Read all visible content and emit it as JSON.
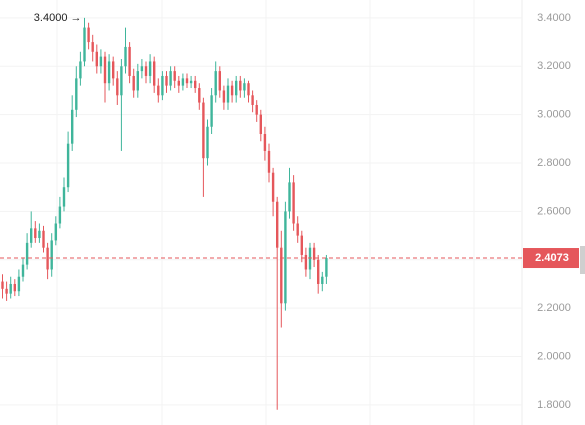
{
  "chart_data": {
    "type": "candlestick",
    "categories": [
      null,
      null,
      null,
      null,
      null,
      null,
      null,
      null,
      null,
      null,
      null,
      null,
      null,
      null,
      null,
      null,
      null,
      null,
      null,
      null,
      null,
      null,
      null,
      null,
      null,
      null,
      null,
      null,
      null,
      null,
      null,
      null,
      null,
      null,
      null,
      null,
      null,
      null,
      null,
      null,
      null,
      null,
      null,
      null,
      null,
      null,
      null,
      null,
      null,
      null,
      null,
      null,
      null,
      null,
      null,
      null,
      null,
      null,
      null,
      null,
      null,
      null,
      null,
      null,
      null,
      null,
      null,
      null,
      null,
      null,
      null,
      null,
      null,
      null,
      null,
      null,
      null,
      null,
      null,
      null
    ],
    "open": [
      2.31,
      2.28,
      2.26,
      2.3,
      2.27,
      2.33,
      2.38,
      2.47,
      2.53,
      2.49,
      2.52,
      2.45,
      2.36,
      2.48,
      2.55,
      2.62,
      2.7,
      2.88,
      3.02,
      3.15,
      3.22,
      3.36,
      3.3,
      3.26,
      3.2,
      3.24,
      3.13,
      3.22,
      3.15,
      3.08,
      3.2,
      3.28,
      3.16,
      3.1,
      3.18,
      3.2,
      3.16,
      3.22,
      3.12,
      3.08,
      3.16,
      3.12,
      3.18,
      3.14,
      3.12,
      3.15,
      3.13,
      3.14,
      3.11,
      3.05,
      2.82,
      2.95,
      3.08,
      3.18,
      3.1,
      3.05,
      3.12,
      3.08,
      3.14,
      3.1,
      3.13,
      3.08,
      3.04,
      3.0,
      2.92,
      2.85,
      2.76,
      2.64,
      2.45,
      2.22,
      2.6,
      2.72,
      2.55,
      2.5,
      2.42,
      2.36,
      2.45,
      2.4,
      2.3,
      2.33
    ],
    "high": [
      2.34,
      2.31,
      2.33,
      2.32,
      2.36,
      2.41,
      2.51,
      2.6,
      2.56,
      2.55,
      2.54,
      2.47,
      2.51,
      2.58,
      2.66,
      2.74,
      2.93,
      3.08,
      3.2,
      3.26,
      3.4,
      3.38,
      3.33,
      3.29,
      3.27,
      3.26,
      3.25,
      3.24,
      3.18,
      3.23,
      3.36,
      3.3,
      3.19,
      3.21,
      3.23,
      3.22,
      3.25,
      3.24,
      3.15,
      3.18,
      3.18,
      3.2,
      3.2,
      3.16,
      3.17,
      3.17,
      3.16,
      3.16,
      3.13,
      3.07,
      2.98,
      3.11,
      3.22,
      3.2,
      3.12,
      3.15,
      3.14,
      3.16,
      3.16,
      3.15,
      3.14,
      3.1,
      3.06,
      3.02,
      2.95,
      2.88,
      2.78,
      2.66,
      2.52,
      2.64,
      2.78,
      2.75,
      2.58,
      2.52,
      2.45,
      2.47,
      2.47,
      2.42,
      2.35,
      2.42
    ],
    "low": [
      2.24,
      2.23,
      2.24,
      2.25,
      2.25,
      2.31,
      2.36,
      2.45,
      2.47,
      2.47,
      2.43,
      2.32,
      2.33,
      2.46,
      2.53,
      2.6,
      2.68,
      2.85,
      2.99,
      3.12,
      3.2,
      3.27,
      3.22,
      3.17,
      3.17,
      3.05,
      3.1,
      3.12,
      3.04,
      2.85,
      3.17,
      3.13,
      3.07,
      3.07,
      3.15,
      3.13,
      3.13,
      3.09,
      3.05,
      3.06,
      3.09,
      3.1,
      3.11,
      3.09,
      3.1,
      3.11,
      3.11,
      3.09,
      3.02,
      2.66,
      2.79,
      2.92,
      3.05,
      3.07,
      3.02,
      3.02,
      3.05,
      3.05,
      3.07,
      3.07,
      3.05,
      3.01,
      2.97,
      2.89,
      2.81,
      2.72,
      2.58,
      1.78,
      2.12,
      2.19,
      2.57,
      2.52,
      2.47,
      2.39,
      2.33,
      2.32,
      2.37,
      2.26,
      2.27,
      2.3
    ],
    "close": [
      2.28,
      2.26,
      2.3,
      2.27,
      2.33,
      2.38,
      2.47,
      2.53,
      2.49,
      2.52,
      2.45,
      2.36,
      2.48,
      2.55,
      2.62,
      2.7,
      2.88,
      3.02,
      3.15,
      3.22,
      3.36,
      3.3,
      3.26,
      3.2,
      3.24,
      3.13,
      3.22,
      3.15,
      3.08,
      3.2,
      3.28,
      3.16,
      3.1,
      3.18,
      3.2,
      3.16,
      3.22,
      3.12,
      3.08,
      3.16,
      3.12,
      3.18,
      3.14,
      3.12,
      3.15,
      3.13,
      3.14,
      3.11,
      3.05,
      2.82,
      2.95,
      3.08,
      3.18,
      3.1,
      3.05,
      3.12,
      3.08,
      3.14,
      3.1,
      3.13,
      3.08,
      3.04,
      3.0,
      2.92,
      2.85,
      2.76,
      2.64,
      2.45,
      2.22,
      2.6,
      2.72,
      2.55,
      2.5,
      2.42,
      2.36,
      2.45,
      2.4,
      2.3,
      2.33,
      2.4073
    ],
    "up_color": "#3fb59b",
    "down_color": "#e5575b",
    "ylim": [
      1.717,
      3.474
    ],
    "yticks": [
      {
        "value": 1.8,
        "label": "1.8000"
      },
      {
        "value": 2.0,
        "label": "2.0000"
      },
      {
        "value": 2.2,
        "label": "2.2000"
      },
      {
        "value": 2.4,
        "label": "2.4000"
      },
      {
        "value": 2.6,
        "label": "2.6000"
      },
      {
        "value": 2.8,
        "label": "2.8000"
      },
      {
        "value": 3.0,
        "label": "3.0000"
      },
      {
        "value": 3.2,
        "label": "3.2000"
      },
      {
        "value": 3.4,
        "label": "3.4000"
      }
    ],
    "grid": true,
    "max_marker": {
      "value": 3.4,
      "label": "3.4000 →"
    },
    "last_price": {
      "value": 2.4073,
      "label": "2.4073"
    }
  }
}
